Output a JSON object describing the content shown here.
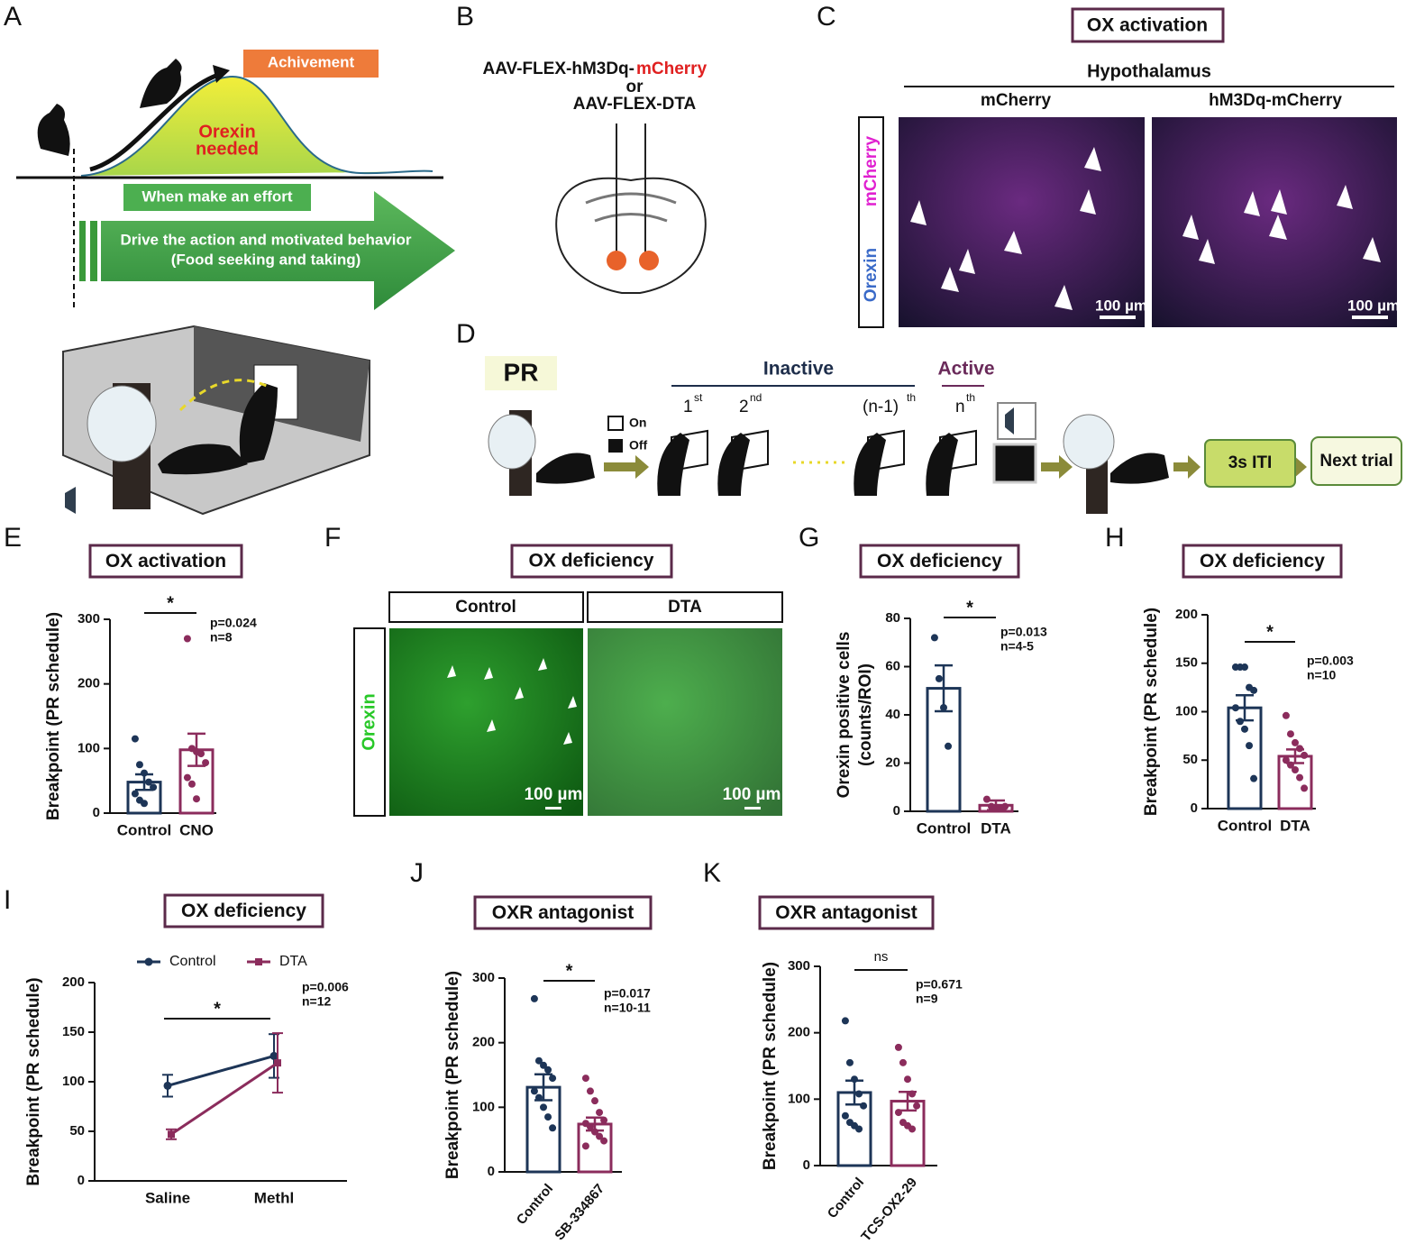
{
  "panel_labels": [
    "A",
    "B",
    "C",
    "D",
    "E",
    "F",
    "G",
    "H",
    "I",
    "J",
    "K"
  ],
  "panel_a": {
    "achievement": "Achivement",
    "curve_label": [
      "Orexin",
      "needed"
    ],
    "effort": "When make an effort",
    "drive": [
      "Drive the action and motivated behavior",
      "(Food seeking and taking)"
    ]
  },
  "panel_b": {
    "vector_1": "AAV-FLEX-hM3Dq-",
    "vector_1_reporter": "mCherry",
    "or": "or",
    "vector_2": "AAV-FLEX-DTA"
  },
  "panel_c": {
    "title": "OX activation",
    "region": "Hypothalamus",
    "columns": [
      "mCherry",
      "hM3Dq-mCherry"
    ],
    "rows": [
      "mCherry",
      "Orexin"
    ],
    "scale_bar": "100 µm"
  },
  "panel_d": {
    "title": "PR",
    "legend": [
      "On",
      "Off"
    ],
    "inactive": "Inactive",
    "active": "Active",
    "presses": [
      {
        "base": "1",
        "sup": "st"
      },
      {
        "base": "2",
        "sup": "nd"
      },
      {
        "base": "(n-1)",
        "sup": "th"
      },
      {
        "base": "n",
        "sup": "th"
      }
    ],
    "iti": "3s ITI",
    "next": "Next trial"
  },
  "panel_f": {
    "title": "OX deficiency",
    "columns": [
      "Control",
      "DTA"
    ],
    "row": "Orexin",
    "scale_bar": "100 µm"
  },
  "chart_data": [
    {
      "type": "bar",
      "title": "OX activation",
      "ylabel": "Breakpoint (PR schedule)",
      "categories": [
        "Control",
        "CNO"
      ],
      "colors": [
        "#1d3557",
        "#8b2c5c"
      ],
      "values": [
        48,
        98
      ],
      "errors": [
        12,
        25
      ],
      "points": [
        [
          115,
          75,
          62,
          48,
          40,
          30,
          20,
          15
        ],
        [
          270,
          100,
          95,
          92,
          78,
          55,
          45,
          22
        ]
      ],
      "ylim": [
        0,
        300
      ],
      "yticks": [
        0,
        100,
        200,
        300
      ],
      "significance": "*",
      "stats": [
        "p=0.024",
        "n=8"
      ]
    },
    {
      "type": "bar",
      "title": "OX deficiency",
      "ylabel": [
        "Orexin positive cells",
        "(counts/ROI)"
      ],
      "categories": [
        "Control",
        "DTA"
      ],
      "colors": [
        "#1d3557",
        "#8b2c5c"
      ],
      "values": [
        51,
        2.5
      ],
      "errors": [
        9.5,
        2
      ],
      "points": [
        [
          72,
          55,
          43,
          27
        ],
        [
          5,
          2,
          1,
          1,
          2
        ]
      ],
      "ylim": [
        0,
        80
      ],
      "yticks": [
        0,
        20,
        40,
        60,
        80
      ],
      "significance": "*",
      "stats": [
        "p=0.013",
        "n=4-5"
      ]
    },
    {
      "type": "bar",
      "title": "OX deficiency",
      "ylabel": "Breakpoint (PR schedule)",
      "categories": [
        "Control",
        "DTA"
      ],
      "colors": [
        "#1d3557",
        "#8b2c5c"
      ],
      "values": [
        104,
        54
      ],
      "errors": [
        13,
        7
      ],
      "points": [
        [
          146,
          146,
          146,
          125,
          122,
          104,
          90,
          82,
          65,
          31
        ],
        [
          96,
          77,
          68,
          62,
          55,
          50,
          45,
          40,
          32,
          21
        ]
      ],
      "ylim": [
        0,
        200
      ],
      "yticks": [
        0,
        50,
        100,
        150,
        200
      ],
      "significance": "*",
      "stats": [
        "p=0.003",
        "n=10"
      ]
    },
    {
      "type": "line",
      "title": "OX deficiency",
      "ylabel": "Breakpoint (PR schedule)",
      "categories": [
        "Saline",
        "Methl"
      ],
      "series": [
        {
          "name": "Control",
          "color": "#1d3557",
          "values": [
            96,
            126
          ],
          "errors": [
            11,
            22
          ]
        },
        {
          "name": "DTA",
          "color": "#8b2c5c",
          "values": [
            47,
            119
          ],
          "errors": [
            5,
            30
          ]
        }
      ],
      "ylim": [
        0,
        200
      ],
      "yticks": [
        0,
        50,
        100,
        150,
        200
      ],
      "significance": "*",
      "stats": [
        "p=0.006",
        "n=12"
      ]
    },
    {
      "type": "bar",
      "title": "OXR antagonist",
      "ylabel": "Breakpoint (PR schedule)",
      "categories": [
        "Control",
        "SB-334867"
      ],
      "colors": [
        "#1d3557",
        "#8b2c5c"
      ],
      "values": [
        131,
        74
      ],
      "errors": [
        20,
        10
      ],
      "points": [
        [
          268,
          172,
          165,
          158,
          145,
          125,
          115,
          100,
          85,
          68
        ],
        [
          145,
          125,
          110,
          92,
          80,
          75,
          70,
          62,
          55,
          48,
          40
        ]
      ],
      "ylim": [
        0,
        300
      ],
      "yticks": [
        0,
        100,
        200,
        300
      ],
      "significance": "*",
      "stats": [
        "p=0.017",
        "n=10-11"
      ]
    },
    {
      "type": "bar",
      "title": "OXR antagonist",
      "ylabel": "Breakpoint (PR schedule)",
      "categories": [
        "Control",
        "TCS-OX2-29"
      ],
      "colors": [
        "#1d3557",
        "#8b2c5c"
      ],
      "values": [
        110,
        97
      ],
      "errors": [
        18,
        14
      ],
      "points": [
        [
          218,
          155,
          130,
          108,
          90,
          75,
          65,
          60,
          55
        ],
        [
          178,
          155,
          130,
          108,
          90,
          80,
          65,
          60,
          55
        ]
      ],
      "ylim": [
        0,
        300
      ],
      "yticks": [
        0,
        100,
        200,
        300
      ],
      "significance": "ns",
      "stats": [
        "p=0.671",
        "n=9"
      ]
    }
  ]
}
